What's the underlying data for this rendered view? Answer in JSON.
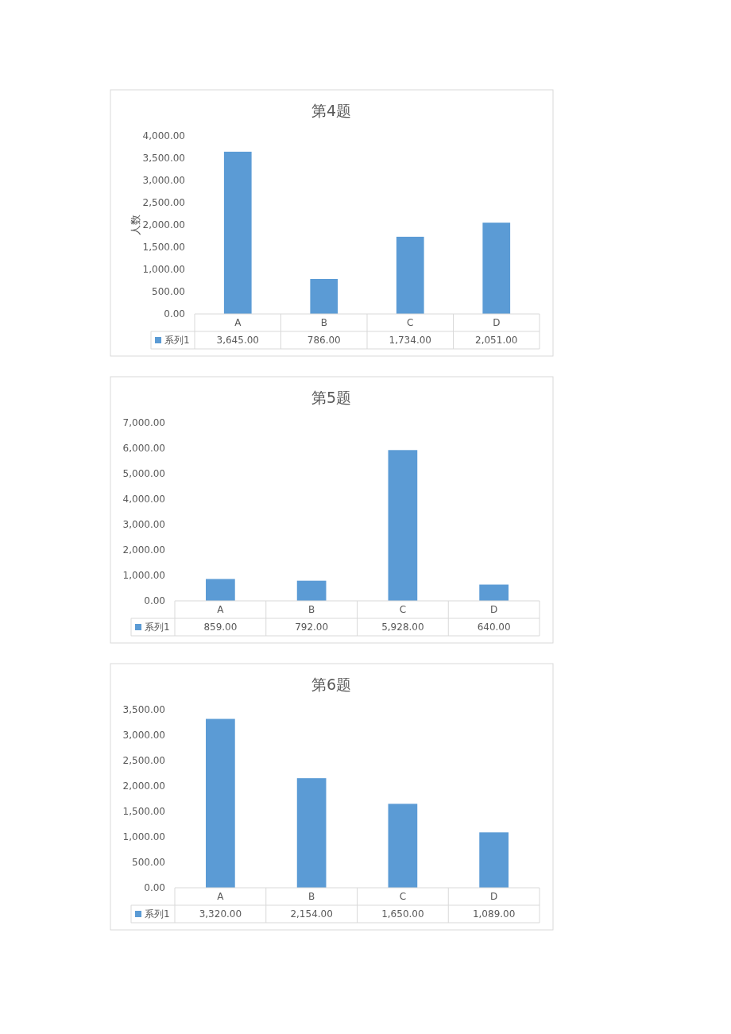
{
  "chart_data": [
    {
      "type": "bar",
      "title": "第4题",
      "ylabel": "人数",
      "categories": [
        "A",
        "B",
        "C",
        "D"
      ],
      "legend": "bottom",
      "series": [
        {
          "name": "系列1",
          "color": "#5b9bd5",
          "values": [
            3645,
            786,
            1734,
            2051
          ],
          "value_labels": [
            "3,645.00",
            "786.00",
            "1,734.00",
            "2,051.00"
          ]
        }
      ],
      "ylim": [
        0,
        4000
      ],
      "yticks": [
        {
          "value": 0,
          "label": "0.00"
        },
        {
          "value": 500,
          "label": "500.00"
        },
        {
          "value": 1000,
          "label": "1,000.00"
        },
        {
          "value": 1500,
          "label": "1,500.00"
        },
        {
          "value": 2000,
          "label": "2,000.00"
        },
        {
          "value": 2500,
          "label": "2,500.00"
        },
        {
          "value": 3000,
          "label": "3,000.00"
        },
        {
          "value": 3500,
          "label": "3,500.00"
        },
        {
          "value": 4000,
          "label": "4,000.00"
        }
      ]
    },
    {
      "type": "bar",
      "title": "第5题",
      "categories": [
        "A",
        "B",
        "C",
        "D"
      ],
      "legend": "bottom",
      "series": [
        {
          "name": "系列1",
          "color": "#5b9bd5",
          "values": [
            859,
            792,
            5928,
            640
          ],
          "value_labels": [
            "859.00",
            "792.00",
            "5,928.00",
            "640.00"
          ]
        }
      ],
      "ylim": [
        0,
        7000
      ],
      "yticks": [
        {
          "value": 0,
          "label": "0.00"
        },
        {
          "value": 1000,
          "label": "1,000.00"
        },
        {
          "value": 2000,
          "label": "2,000.00"
        },
        {
          "value": 3000,
          "label": "3,000.00"
        },
        {
          "value": 4000,
          "label": "4,000.00"
        },
        {
          "value": 5000,
          "label": "5,000.00"
        },
        {
          "value": 6000,
          "label": "6,000.00"
        },
        {
          "value": 7000,
          "label": "7,000.00"
        }
      ]
    },
    {
      "type": "bar",
      "title": "第6题",
      "categories": [
        "A",
        "B",
        "C",
        "D"
      ],
      "legend": "bottom",
      "series": [
        {
          "name": "系列1",
          "color": "#5b9bd5",
          "values": [
            3320,
            2154,
            1650,
            1089
          ],
          "value_labels": [
            "3,320.00",
            "2,154.00",
            "1,650.00",
            "1,089.00"
          ]
        }
      ],
      "ylim": [
        0,
        3500
      ],
      "yticks": [
        {
          "value": 0,
          "label": "0.00"
        },
        {
          "value": 500,
          "label": "500.00"
        },
        {
          "value": 1000,
          "label": "1,000.00"
        },
        {
          "value": 1500,
          "label": "1,500.00"
        },
        {
          "value": 2000,
          "label": "2,000.00"
        },
        {
          "value": 2500,
          "label": "2,500.00"
        },
        {
          "value": 3000,
          "label": "3,000.00"
        },
        {
          "value": 3500,
          "label": "3,500.00"
        }
      ]
    }
  ]
}
